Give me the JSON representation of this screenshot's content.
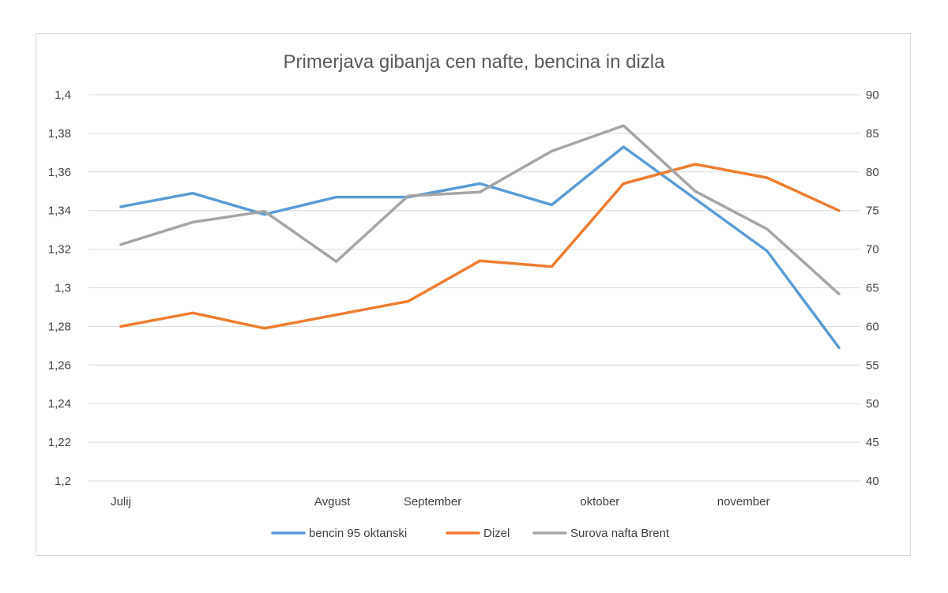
{
  "chart_data": {
    "type": "line",
    "title": "Primerjava gibanja cen nafte, bencina in dizla",
    "x": [
      0,
      1,
      2,
      3,
      4,
      5,
      6,
      7,
      8,
      9,
      10
    ],
    "categories": [
      "Julij",
      "",
      "",
      "Avgust",
      "",
      "September",
      "",
      "oktober",
      "",
      "november",
      ""
    ],
    "y_left": {
      "min": 1.2,
      "max": 1.4,
      "step": 0.02,
      "ticks": [
        "1,2",
        "1,22",
        "1,24",
        "1,26",
        "1,28",
        "1,3",
        "1,32",
        "1,34",
        "1,36",
        "1,38",
        "1,4"
      ]
    },
    "y_right": {
      "min": 40,
      "max": 90,
      "step": 5,
      "ticks": [
        "40",
        "45",
        "50",
        "55",
        "60",
        "65",
        "70",
        "75",
        "80",
        "85",
        "90"
      ]
    },
    "grid": true,
    "legend_position": "bottom",
    "series": [
      {
        "name": "bencin 95 oktanski",
        "axis": "left",
        "color": "#5b9bd5",
        "values": [
          1.342,
          1.349,
          1.338,
          1.347,
          1.347,
          1.354,
          1.343,
          1.373,
          1.346,
          1.319,
          1.269
        ]
      },
      {
        "name": "Dizel",
        "axis": "left",
        "color": "#ed7d31",
        "values": [
          1.28,
          1.287,
          1.279,
          1.286,
          1.293,
          1.314,
          1.311,
          1.354,
          1.364,
          1.357,
          1.34
        ]
      },
      {
        "name": "Surova nafta Brent",
        "axis": "right",
        "color": "#a5a5a5",
        "values": [
          70.6,
          73.5,
          74.9,
          68.4,
          76.9,
          77.4,
          82.7,
          86.0,
          77.5,
          72.6,
          64.2
        ]
      }
    ]
  }
}
